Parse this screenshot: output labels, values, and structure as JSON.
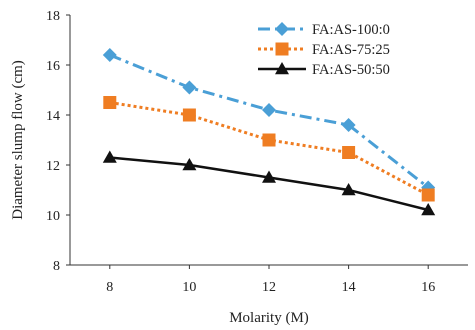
{
  "chart_data": {
    "type": "line",
    "title": "",
    "xlabel": "Molarity (M)",
    "ylabel": "Diameter slump flow (cm)",
    "x": [
      8,
      10,
      12,
      14,
      16
    ],
    "xlim": [
      7,
      17
    ],
    "ylim": [
      8,
      18
    ],
    "xticks": [
      "8",
      "10",
      "12",
      "14",
      "16"
    ],
    "yticks": [
      "8",
      "10",
      "12",
      "14",
      "16",
      "18"
    ],
    "grid": false,
    "legend_position": "top-right",
    "series": [
      {
        "name": "FA:AS-100:0",
        "values": [
          16.4,
          15.1,
          14.2,
          13.6,
          11.1
        ],
        "color": "#4a9fd6",
        "marker": "diamond",
        "line": "dash-dot"
      },
      {
        "name": "FA:AS-75:25",
        "values": [
          14.5,
          14.0,
          13.0,
          12.5,
          10.8
        ],
        "color": "#ef7d22",
        "marker": "square",
        "line": "dotted"
      },
      {
        "name": "FA:AS-50:50",
        "values": [
          12.3,
          12.0,
          11.5,
          11.0,
          10.2
        ],
        "color": "#111111",
        "marker": "triangle",
        "line": "solid"
      }
    ]
  }
}
